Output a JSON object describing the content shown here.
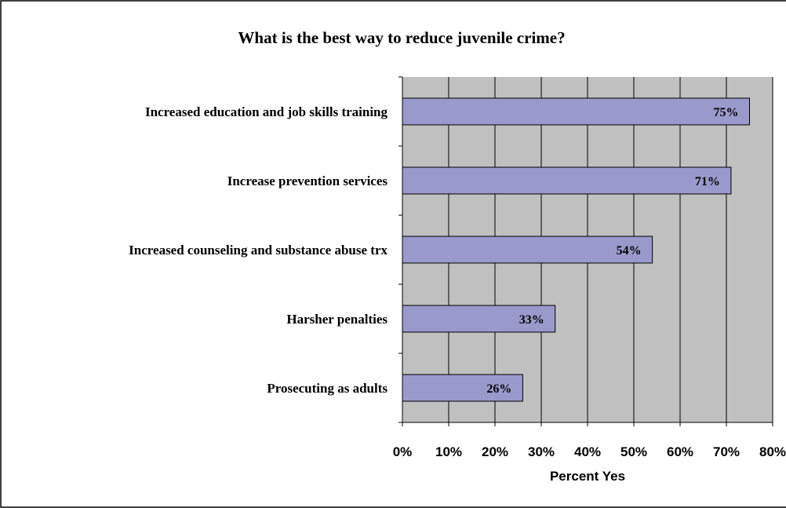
{
  "chart_data": {
    "type": "bar",
    "orientation": "horizontal",
    "title": "What is the best way to reduce juvenile crime?",
    "xlabel": "Percent Yes",
    "ylabel": "",
    "categories": [
      "Increased education and job skills training",
      "Increase prevention services",
      "Increased counseling and substance abuse trx",
      "Harsher penalties",
      "Prosecuting as adults"
    ],
    "values": [
      75,
      71,
      54,
      33,
      26
    ],
    "data_labels": [
      "75%",
      "71%",
      "54%",
      "33%",
      "26%"
    ],
    "xlim": [
      0,
      80
    ],
    "x_ticks": [
      0,
      10,
      20,
      30,
      40,
      50,
      60,
      70,
      80
    ],
    "x_tick_labels": [
      "0%",
      "10%",
      "20%",
      "30%",
      "40%",
      "50%",
      "60%",
      "70%",
      "80%"
    ],
    "grid": true,
    "legend": "none",
    "colors": {
      "bar_fill": "#9999cc",
      "plot_background": "#c0c0c0",
      "frame": "#000000"
    }
  }
}
